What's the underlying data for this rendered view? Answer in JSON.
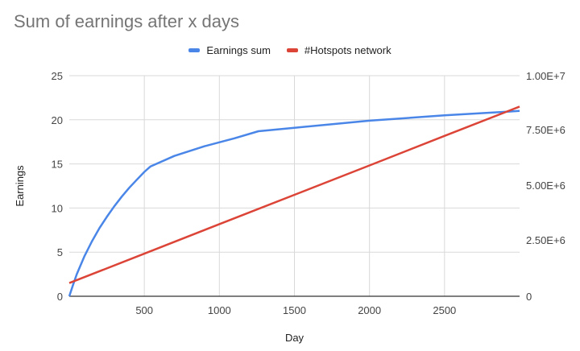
{
  "chart_data": {
    "type": "line",
    "title": "Sum of earnings after x days",
    "xlabel": "Day",
    "ylabel": "Earnings",
    "y2label": "",
    "xlim": [
      0,
      3000
    ],
    "ylim": [
      0,
      25
    ],
    "y2lim": [
      0,
      10000000
    ],
    "x_ticks": [
      "500",
      "1000",
      "1500",
      "2000",
      "2500"
    ],
    "y_ticks": [
      "0",
      "5",
      "10",
      "15",
      "20",
      "25"
    ],
    "y2_ticks": [
      "0",
      "2.50E+6",
      "5.00E+6",
      "7.50E+6",
      "1.00E+7"
    ],
    "grid": true,
    "legend_position": "top",
    "series": [
      {
        "name": "Earnings sum",
        "axis": "left",
        "color": "#4a86e8",
        "x": [
          0,
          25,
          50,
          100,
          150,
          200,
          250,
          300,
          350,
          400,
          450,
          500,
          540,
          700,
          900,
          1100,
          1260,
          1500,
          2000,
          2500,
          3000
        ],
        "values": [
          0,
          1.3,
          2.5,
          4.5,
          6.2,
          7.7,
          9.0,
          10.2,
          11.3,
          12.3,
          13.2,
          14.1,
          14.7,
          15.9,
          17.0,
          17.9,
          18.7,
          19.1,
          19.9,
          20.5,
          21.0
        ]
      },
      {
        "name": "#Hotspots network",
        "axis": "right",
        "color": "#db4437",
        "x": [
          0,
          500,
          1000,
          1500,
          2000,
          2500,
          3000
        ],
        "values": [
          600000,
          1930000,
          3270000,
          4600000,
          5930000,
          7270000,
          8600000
        ]
      }
    ]
  }
}
